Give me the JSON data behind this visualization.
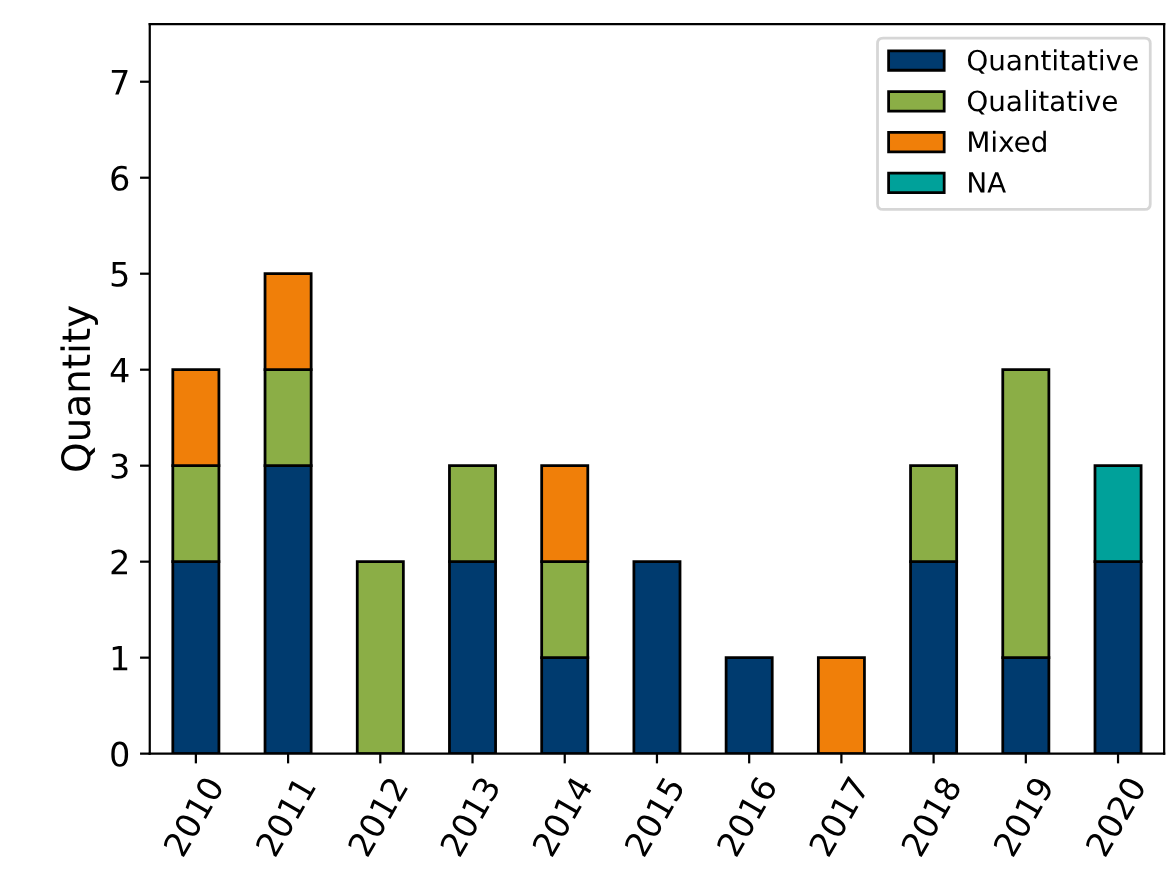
{
  "chart_data": {
    "type": "bar",
    "stacked": true,
    "ylabel": "Quantity",
    "categories": [
      "2010",
      "2011",
      "2012",
      "2013",
      "2014",
      "2015",
      "2016",
      "2017",
      "2018",
      "2019",
      "2020"
    ],
    "series": [
      {
        "name": "Quantitative",
        "color": "#003b6f",
        "values": [
          2,
          3,
          0,
          2,
          1,
          2,
          1,
          0,
          2,
          1,
          2
        ]
      },
      {
        "name": "Qualitative",
        "color": "#8bae46",
        "values": [
          1,
          1,
          2,
          1,
          1,
          0,
          0,
          0,
          1,
          3,
          0
        ]
      },
      {
        "name": "Mixed",
        "color": "#f07f09",
        "values": [
          1,
          1,
          0,
          0,
          1,
          0,
          0,
          1,
          0,
          0,
          0
        ]
      },
      {
        "name": "NA",
        "color": "#00a19a",
        "values": [
          0,
          0,
          0,
          0,
          0,
          0,
          0,
          0,
          0,
          0,
          1
        ]
      }
    ],
    "ylim": [
      0,
      7.6
    ],
    "yticks": [
      0,
      1,
      2,
      3,
      4,
      5,
      6,
      7
    ],
    "grid": false,
    "legend": "top right"
  }
}
